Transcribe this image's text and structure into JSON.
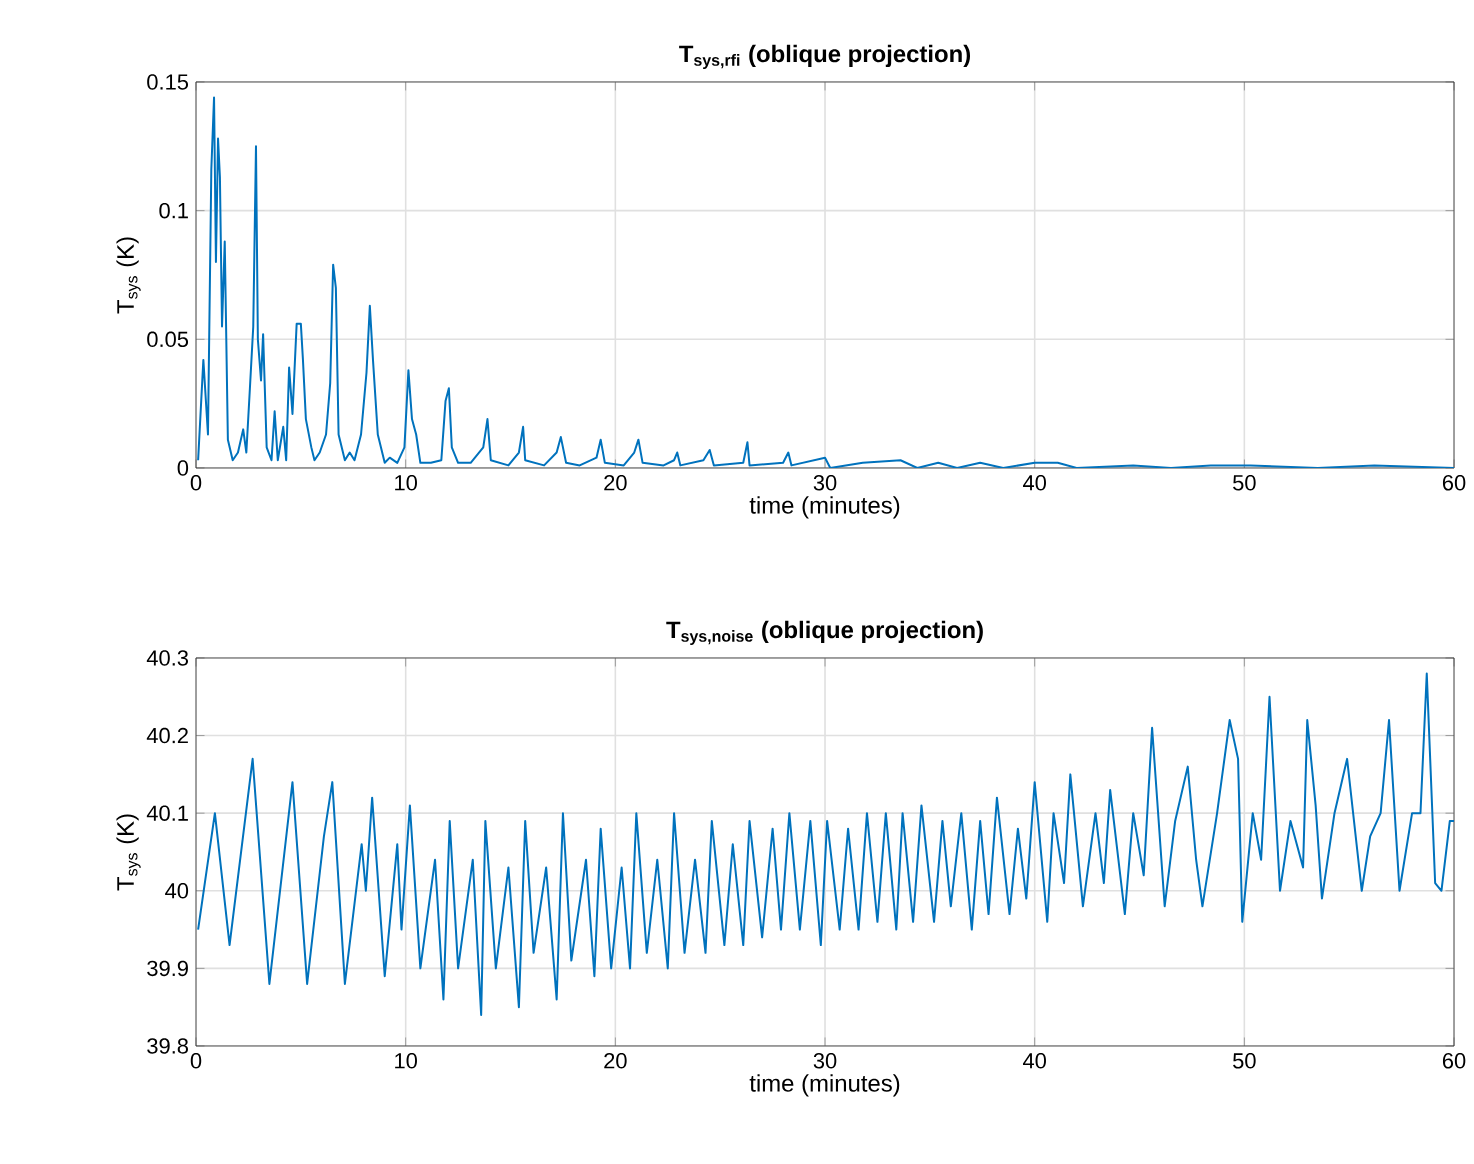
{
  "chart_data": [
    {
      "type": "line",
      "title": "T$_{sys,rfi}$ (oblique projection)",
      "xlabel": "time (minutes)",
      "ylabel": "T$_{sys}$ (K)",
      "color": "#0072bd",
      "grid": true,
      "xlim": [
        0,
        60
      ],
      "ylim": [
        0,
        0.15
      ],
      "xticks": [
        0,
        10,
        20,
        30,
        40,
        50,
        60
      ],
      "yticks": [
        0,
        0.05,
        0.1,
        0.15
      ],
      "x": [
        0.1,
        0.35,
        0.57,
        0.73,
        0.86,
        0.95,
        1.05,
        1.14,
        1.24,
        1.37,
        1.52,
        1.75,
        2.0,
        2.25,
        2.4,
        2.57,
        2.73,
        2.86,
        2.95,
        3.1,
        3.2,
        3.37,
        3.6,
        3.75,
        3.9,
        4.16,
        4.3,
        4.44,
        4.6,
        4.8,
        5.0,
        5.1,
        5.24,
        5.5,
        5.65,
        5.9,
        6.2,
        6.4,
        6.54,
        6.67,
        6.8,
        7.1,
        7.33,
        7.56,
        7.87,
        8.13,
        8.29,
        8.44,
        8.67,
        9.0,
        9.24,
        9.6,
        9.94,
        10.13,
        10.3,
        10.5,
        10.7,
        11.2,
        11.7,
        11.9,
        12.06,
        12.2,
        12.5,
        13.1,
        13.7,
        13.9,
        14.06,
        14.9,
        15.4,
        15.6,
        15.7,
        16.6,
        17.2,
        17.4,
        17.65,
        18.3,
        19.1,
        19.3,
        19.5,
        20.4,
        20.9,
        21.1,
        21.3,
        22.3,
        22.8,
        22.95,
        23.1,
        24.2,
        24.5,
        24.7,
        26.1,
        26.3,
        26.4,
        28.0,
        28.25,
        28.4,
        30.0,
        30.25,
        31.8,
        33.6,
        34.4,
        35.4,
        36.3,
        37.4,
        38.5,
        40.0,
        41.1,
        42.0,
        44.7,
        46.5,
        48.4,
        50.3,
        53.5,
        56.2,
        60.0
      ],
      "values": [
        0.003,
        0.042,
        0.013,
        0.116,
        0.144,
        0.08,
        0.128,
        0.113,
        0.055,
        0.088,
        0.011,
        0.003,
        0.006,
        0.015,
        0.006,
        0.031,
        0.055,
        0.125,
        0.05,
        0.034,
        0.052,
        0.008,
        0.003,
        0.022,
        0.003,
        0.016,
        0.003,
        0.039,
        0.021,
        0.056,
        0.056,
        0.042,
        0.019,
        0.008,
        0.003,
        0.006,
        0.013,
        0.033,
        0.079,
        0.07,
        0.013,
        0.003,
        0.006,
        0.003,
        0.013,
        0.037,
        0.063,
        0.042,
        0.013,
        0.002,
        0.004,
        0.002,
        0.008,
        0.038,
        0.019,
        0.013,
        0.002,
        0.002,
        0.003,
        0.026,
        0.031,
        0.008,
        0.002,
        0.002,
        0.008,
        0.019,
        0.003,
        0.001,
        0.006,
        0.016,
        0.003,
        0.001,
        0.006,
        0.012,
        0.002,
        0.001,
        0.004,
        0.011,
        0.002,
        0.001,
        0.006,
        0.011,
        0.002,
        0.001,
        0.003,
        0.006,
        0.001,
        0.003,
        0.007,
        0.001,
        0.002,
        0.01,
        0.001,
        0.002,
        0.006,
        0.001,
        0.004,
        0.0,
        0.002,
        0.003,
        0.0,
        0.002,
        0.0,
        0.002,
        0.0,
        0.002,
        0.002,
        0.0,
        0.001,
        0.0,
        0.001,
        0.001,
        0.0,
        0.001,
        0.0
      ]
    },
    {
      "type": "line",
      "title": "T$_{sys,noise}$ (oblique projection)",
      "xlabel": "time (minutes)",
      "ylabel": "T$_{sys}$ (K)",
      "color": "#0072bd",
      "grid": true,
      "xlim": [
        0,
        60
      ],
      "ylim": [
        39.8,
        40.3
      ],
      "xticks": [
        0,
        10,
        20,
        30,
        40,
        50,
        60
      ],
      "yticks": [
        39.8,
        39.9,
        40,
        40.1,
        40.2,
        40.3
      ],
      "x": [
        0.1,
        0.9,
        1.6,
        2.7,
        3.5,
        4.6,
        5.3,
        6.1,
        6.5,
        7.1,
        7.9,
        8.1,
        8.4,
        9.0,
        9.6,
        9.8,
        10.2,
        10.7,
        11.4,
        11.8,
        12.1,
        12.5,
        13.2,
        13.6,
        13.8,
        14.3,
        14.9,
        15.4,
        15.7,
        16.1,
        16.7,
        17.2,
        17.5,
        17.9,
        18.6,
        19.0,
        19.3,
        19.8,
        20.3,
        20.7,
        21.0,
        21.5,
        22.0,
        22.5,
        22.8,
        23.3,
        23.8,
        24.3,
        24.6,
        25.2,
        25.6,
        26.1,
        26.4,
        27.0,
        27.5,
        27.9,
        28.3,
        28.8,
        29.3,
        29.8,
        30.1,
        30.7,
        31.1,
        31.6,
        32.0,
        32.5,
        32.9,
        33.4,
        33.7,
        34.2,
        34.6,
        35.2,
        35.6,
        36.0,
        36.5,
        37.0,
        37.4,
        37.8,
        38.2,
        38.8,
        39.2,
        39.6,
        40.0,
        40.6,
        40.9,
        41.4,
        41.7,
        42.3,
        42.9,
        43.3,
        43.6,
        44.3,
        44.7,
        45.2,
        45.6,
        46.2,
        46.7,
        47.3,
        47.7,
        48.0,
        48.7,
        49.3,
        49.7,
        49.9,
        50.4,
        50.8,
        51.2,
        51.7,
        52.2,
        52.8,
        53.0,
        53.4,
        53.7,
        54.3,
        54.9,
        55.6,
        56.0,
        56.5,
        56.9,
        57.4,
        58.0,
        58.4,
        58.7,
        59.1,
        59.4,
        59.8,
        60.0
      ],
      "values": [
        39.95,
        40.1,
        39.93,
        40.17,
        39.88,
        40.14,
        39.88,
        40.07,
        40.14,
        39.88,
        40.06,
        40.0,
        40.12,
        39.89,
        40.06,
        39.95,
        40.11,
        39.9,
        40.04,
        39.86,
        40.09,
        39.9,
        40.04,
        39.84,
        40.09,
        39.9,
        40.03,
        39.85,
        40.09,
        39.92,
        40.03,
        39.86,
        40.1,
        39.91,
        40.04,
        39.89,
        40.08,
        39.9,
        40.03,
        39.9,
        40.1,
        39.92,
        40.04,
        39.9,
        40.1,
        39.92,
        40.04,
        39.92,
        40.09,
        39.93,
        40.06,
        39.93,
        40.09,
        39.94,
        40.08,
        39.95,
        40.1,
        39.95,
        40.09,
        39.93,
        40.09,
        39.95,
        40.08,
        39.95,
        40.1,
        39.96,
        40.1,
        39.95,
        40.1,
        39.96,
        40.11,
        39.96,
        40.09,
        39.98,
        40.1,
        39.95,
        40.09,
        39.97,
        40.12,
        39.97,
        40.08,
        39.99,
        40.14,
        39.96,
        40.1,
        40.01,
        40.15,
        39.98,
        40.1,
        40.01,
        40.13,
        39.97,
        40.1,
        40.02,
        40.21,
        39.98,
        40.09,
        40.16,
        40.04,
        39.98,
        40.1,
        40.22,
        40.17,
        39.96,
        40.1,
        40.04,
        40.25,
        40.0,
        40.09,
        40.03,
        40.22,
        40.11,
        39.99,
        40.1,
        40.17,
        40.0,
        40.07,
        40.1,
        40.22,
        40.0,
        40.1,
        40.1,
        40.28,
        40.01,
        40.0,
        40.09,
        40.09
      ]
    }
  ]
}
